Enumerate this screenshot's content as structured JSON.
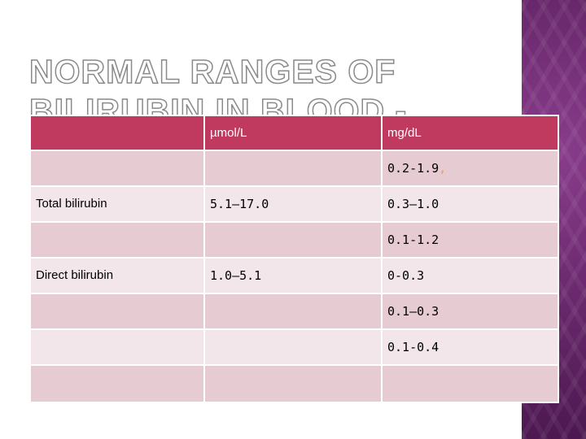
{
  "slide": {
    "title": "NORMAL RANGES OF BILIRUBIN IN BLOOD -"
  },
  "table": {
    "header": {
      "label": "",
      "umol": "µmol/L",
      "mgdl": "mg/dL"
    },
    "rows": [
      {
        "label": "",
        "umol": "",
        "mgdl": "0.2-1.9",
        "mark": ","
      },
      {
        "label": "Total bilirubin",
        "umol": "5.1–17.0",
        "mgdl": "0.3–1.0",
        "mark": ""
      },
      {
        "label": "",
        "umol": "",
        "mgdl": "0.1-1.2",
        "mark": ""
      },
      {
        "label": "Direct bilirubin",
        "umol": "1.0–5.1",
        "mgdl": "0-0.3",
        "mark": ""
      },
      {
        "label": "",
        "umol": "",
        "mgdl": "0.1–0.3",
        "mark": ""
      },
      {
        "label": "",
        "umol": "",
        "mgdl": "0.1-0.4",
        "mark": ""
      },
      {
        "label": "",
        "umol": "",
        "mgdl": "",
        "mark": ""
      }
    ]
  },
  "colors": {
    "header_bg": "#bf3a5e",
    "row_dark": "#e6cbd3",
    "row_light": "#f2e6ea",
    "side_panel": "#6d2a70"
  }
}
